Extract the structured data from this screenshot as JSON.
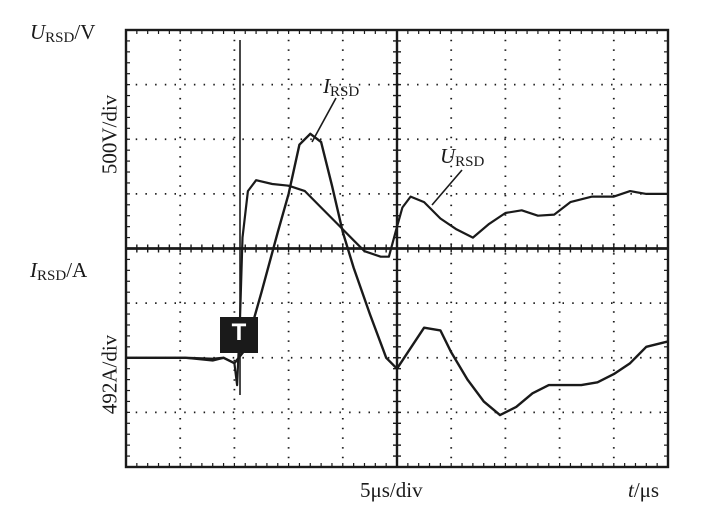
{
  "labels": {
    "u_axis_title": "U",
    "u_axis_sub": "RSD",
    "u_axis_unit": "/V",
    "u_scale": "500V/div",
    "i_axis_title": "I",
    "i_axis_sub": "RSD",
    "i_axis_unit": "/A",
    "i_scale": "492A/div",
    "time_scale": "5μs/div",
    "time_axis_t": "t",
    "time_axis_unit": "/μs",
    "trigger_marker": "T",
    "curve_i_label": "I",
    "curve_i_sub": "RSD",
    "curve_u_label": "U",
    "curve_u_sub": "RSD"
  },
  "chart_data": {
    "type": "line",
    "title": "",
    "x_divisions": 10,
    "y_divisions": 8,
    "x_unit": "μs",
    "x_per_div": 5,
    "grid": true,
    "series": [
      {
        "name": "U_RSD",
        "unit": "V",
        "per_div": 500,
        "points": [
          [
            0,
            -2.0
          ],
          [
            1.1,
            -2.0
          ],
          [
            1.6,
            -2.05
          ],
          [
            1.8,
            -2.0
          ],
          [
            2.0,
            -2.1
          ],
          [
            2.05,
            -2.5
          ],
          [
            2.1,
            -1.4
          ],
          [
            2.15,
            0.2
          ],
          [
            2.25,
            1.05
          ],
          [
            2.4,
            1.25
          ],
          [
            2.7,
            1.18
          ],
          [
            3.0,
            1.15
          ],
          [
            3.3,
            1.05
          ],
          [
            3.6,
            0.75
          ],
          [
            3.9,
            0.45
          ],
          [
            4.2,
            0.15
          ],
          [
            4.4,
            -0.05
          ],
          [
            4.7,
            -0.15
          ],
          [
            4.85,
            -0.15
          ],
          [
            5.0,
            0.4
          ],
          [
            5.1,
            0.75
          ],
          [
            5.25,
            0.95
          ],
          [
            5.5,
            0.85
          ],
          [
            5.8,
            0.55
          ],
          [
            6.1,
            0.35
          ],
          [
            6.4,
            0.2
          ],
          [
            6.7,
            0.45
          ],
          [
            7.0,
            0.65
          ],
          [
            7.3,
            0.7
          ],
          [
            7.6,
            0.6
          ],
          [
            7.9,
            0.62
          ],
          [
            8.2,
            0.85
          ],
          [
            8.6,
            0.95
          ],
          [
            9.0,
            0.95
          ],
          [
            9.3,
            1.05
          ],
          [
            9.6,
            1.0
          ],
          [
            10.0,
            1.0
          ]
        ]
      },
      {
        "name": "I_RSD",
        "unit": "A",
        "per_div": 492,
        "points": [
          [
            0,
            -2.0
          ],
          [
            1.1,
            -2.0
          ],
          [
            1.6,
            -2.02
          ],
          [
            1.8,
            -2.0
          ],
          [
            2.0,
            -2.1
          ],
          [
            2.2,
            -1.85
          ],
          [
            2.5,
            -0.8
          ],
          [
            2.8,
            0.3
          ],
          [
            3.0,
            1.0
          ],
          [
            3.2,
            1.9
          ],
          [
            3.4,
            2.1
          ],
          [
            3.6,
            1.95
          ],
          [
            3.8,
            1.15
          ],
          [
            4.0,
            0.3
          ],
          [
            4.2,
            -0.35
          ],
          [
            4.5,
            -1.2
          ],
          [
            4.8,
            -2.0
          ],
          [
            5.0,
            -2.2
          ],
          [
            5.2,
            -1.9
          ],
          [
            5.5,
            -1.45
          ],
          [
            5.8,
            -1.5
          ],
          [
            6.0,
            -1.9
          ],
          [
            6.3,
            -2.4
          ],
          [
            6.6,
            -2.8
          ],
          [
            6.9,
            -3.05
          ],
          [
            7.2,
            -2.9
          ],
          [
            7.5,
            -2.65
          ],
          [
            7.8,
            -2.5
          ],
          [
            8.1,
            -2.5
          ],
          [
            8.4,
            -2.5
          ],
          [
            8.7,
            -2.45
          ],
          [
            9.0,
            -2.3
          ],
          [
            9.3,
            -2.1
          ],
          [
            9.6,
            -1.8
          ],
          [
            10.0,
            -1.7
          ]
        ]
      }
    ]
  }
}
